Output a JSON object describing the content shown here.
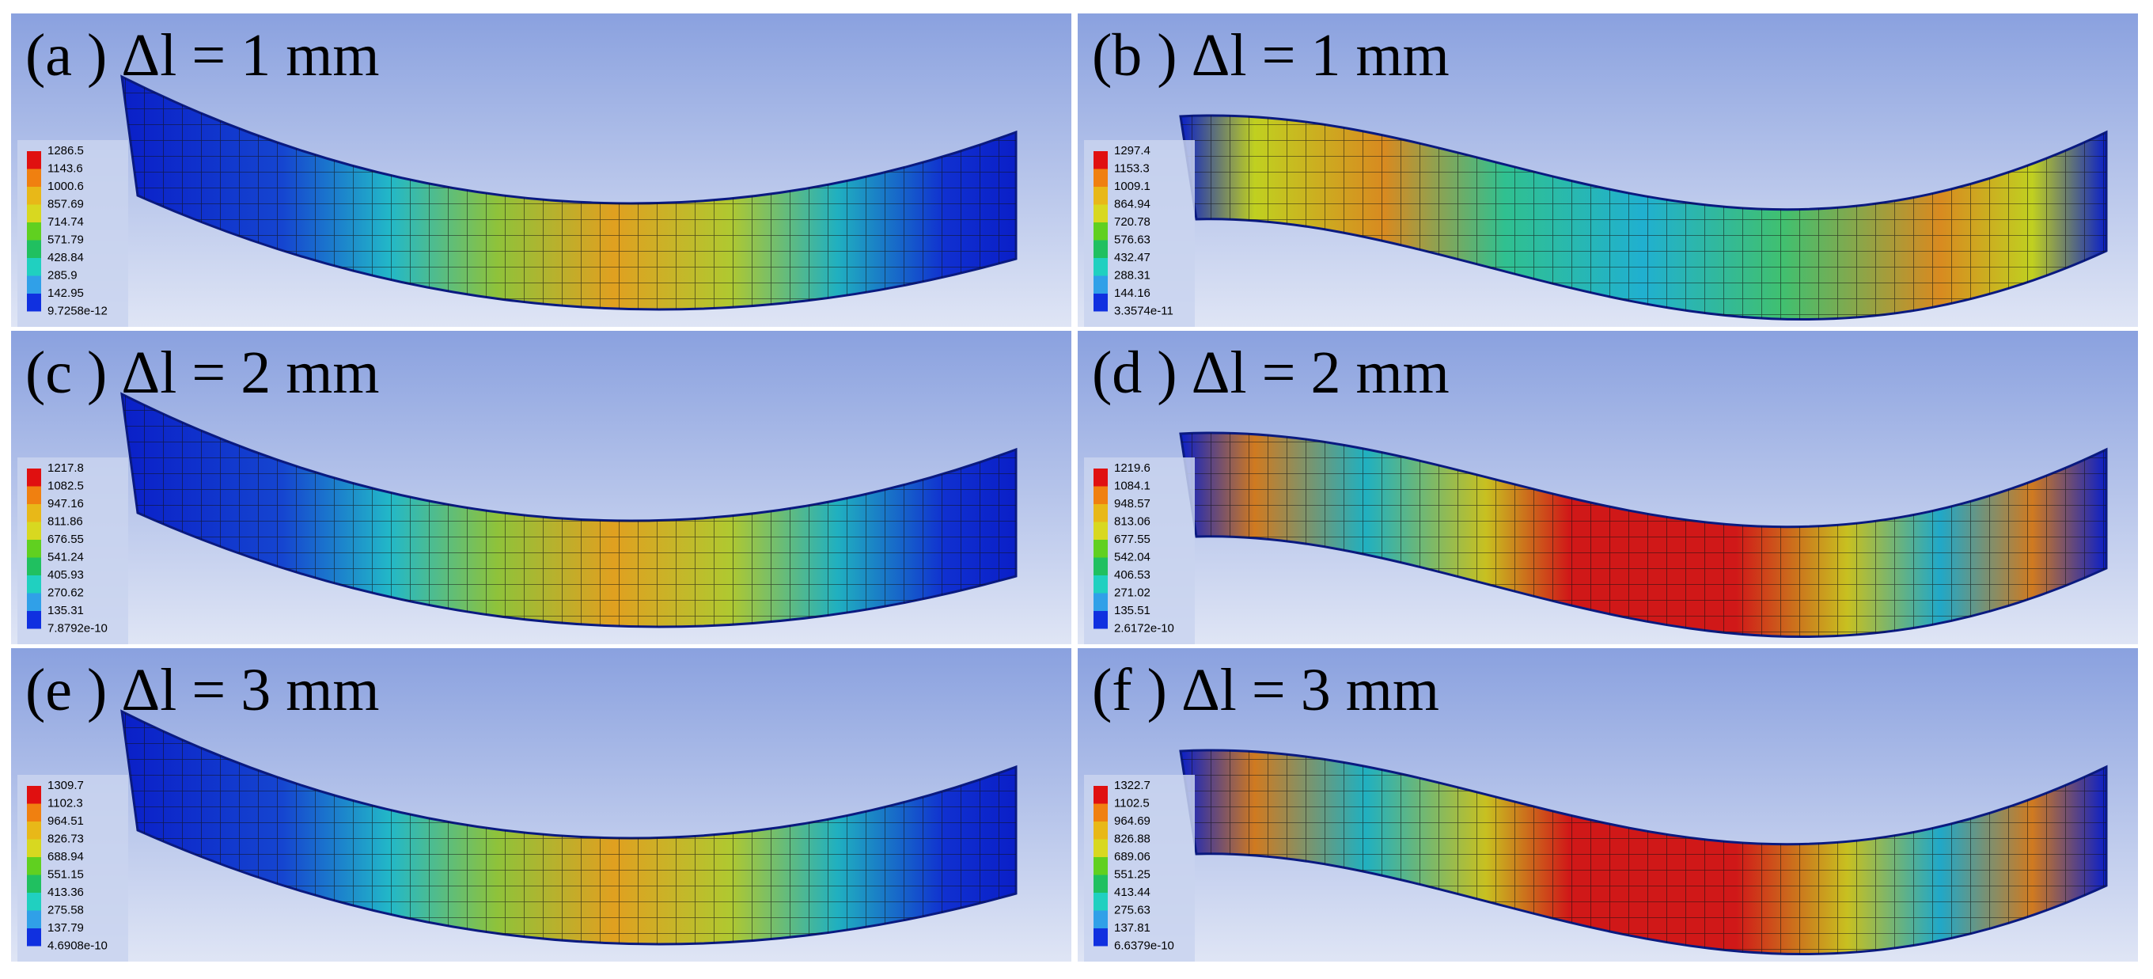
{
  "panels": [
    {
      "label": "(a )",
      "delta": "Δl = 1 mm",
      "legend": [
        "1286.5",
        "1143.6",
        "1000.6",
        "857.69",
        "714.74",
        "571.79",
        "428.84",
        "285.9",
        "142.95",
        "9.7258e-12"
      ]
    },
    {
      "label": "(b )",
      "delta": "Δl = 1 mm",
      "legend": [
        "1297.4",
        "1153.3",
        "1009.1",
        "864.94",
        "720.78",
        "576.63",
        "432.47",
        "288.31",
        "144.16",
        "3.3574e-11"
      ]
    },
    {
      "label": "(c )",
      "delta": "Δl = 2 mm",
      "legend": [
        "1217.8",
        "1082.5",
        "947.16",
        "811.86",
        "676.55",
        "541.24",
        "405.93",
        "270.62",
        "135.31",
        "7.8792e-10"
      ]
    },
    {
      "label": "(d )",
      "delta": "Δl = 2 mm",
      "legend": [
        "1219.6",
        "1084.1",
        "948.57",
        "813.06",
        "677.55",
        "542.04",
        "406.53",
        "271.02",
        "135.51",
        "2.6172e-10"
      ]
    },
    {
      "label": "(e )",
      "delta": "Δl = 3 mm",
      "legend": [
        "1309.7",
        "1102.3",
        "964.51",
        "826.73",
        "688.94",
        "551.15",
        "413.36",
        "275.58",
        "137.79",
        "4.6908e-10"
      ]
    },
    {
      "label": "(f )",
      "delta": "Δl = 3 mm",
      "legend": [
        "1322.7",
        "1102.5",
        "964.69",
        "826.88",
        "689.06",
        "551.25",
        "413.44",
        "275.63",
        "137.81",
        "6.6379e-10"
      ]
    }
  ]
}
